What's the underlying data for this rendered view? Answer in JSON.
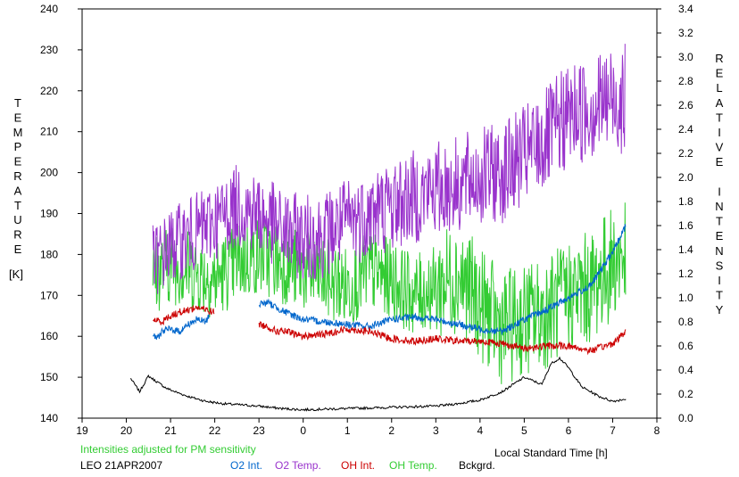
{
  "chart_data": {
    "type": "line",
    "note_text": "Intensities adjusted for PM sensitivity",
    "station_label": "LEO 21APR2007",
    "xlabel": "Local Standard Time [h]",
    "ylabel_left": "TEMPERATURE",
    "ylabel_left_unit": "[K]",
    "ylabel_right": "RELATIVE INTENSITY",
    "x_ticks": [
      "19",
      "20",
      "21",
      "22",
      "23",
      "0",
      "1",
      "2",
      "3",
      "4",
      "5",
      "6",
      "7",
      "8"
    ],
    "xlim": [
      19,
      32
    ],
    "ylim_left": [
      140,
      240
    ],
    "y_ticks_left": [
      "140",
      "150",
      "160",
      "170",
      "180",
      "190",
      "200",
      "210",
      "220",
      "230",
      "240"
    ],
    "ylim_right": [
      0,
      3.4
    ],
    "y_ticks_right": [
      "0.0",
      "0.2",
      "0.4",
      "0.6",
      "0.8",
      "1.0",
      "1.2",
      "1.4",
      "1.6",
      "1.8",
      "2.0",
      "2.2",
      "2.4",
      "2.6",
      "2.8",
      "3.0",
      "3.2",
      "3.4"
    ],
    "grid": false,
    "legend_position": "bottom",
    "series": [
      {
        "name": "O2 Int.",
        "axis": "right",
        "color": "#0066cc",
        "segments": [
          {
            "x": [
              20.6,
              20.7,
              20.8,
              21.0,
              21.2,
              21.4,
              21.6,
              21.8,
              21.9
            ],
            "y": [
              0.7,
              0.66,
              0.72,
              0.74,
              0.72,
              0.78,
              0.82,
              0.8,
              0.88
            ]
          },
          {
            "x": [
              23.0,
              23.2,
              23.4,
              23.6,
              23.8,
              24.0,
              24.5,
              25.0,
              25.5,
              26.0,
              26.5,
              27.0,
              27.5,
              28.0,
              28.5,
              29.0,
              29.5,
              30.0,
              30.5,
              31.0,
              31.3
            ],
            "y": [
              0.95,
              0.96,
              0.92,
              0.88,
              0.85,
              0.82,
              0.8,
              0.78,
              0.76,
              0.82,
              0.84,
              0.82,
              0.78,
              0.74,
              0.72,
              0.82,
              0.9,
              1.0,
              1.1,
              1.38,
              1.6
            ]
          }
        ]
      },
      {
        "name": "O2 Temp.",
        "axis": "left",
        "color": "#9933cc",
        "segments": [
          {
            "x": [
              20.6,
              21.0,
              21.5,
              22.0,
              22.5,
              23.0,
              23.5,
              24.0,
              24.5,
              25.0,
              25.5,
              26.0,
              26.5,
              27.0,
              27.5,
              28.0,
              28.5,
              29.0,
              29.5,
              30.0,
              30.5,
              31.0,
              31.3
            ],
            "y": [
              178,
              182,
              185,
              188,
              192,
              190,
              186,
              184,
              185,
              188,
              190,
              192,
              194,
              196,
              197,
              199,
              200,
              204,
              208,
              214,
              216,
              218,
              218
            ]
          }
        ]
      },
      {
        "name": "OH Int.",
        "axis": "right",
        "color": "#cc0000",
        "segments": [
          {
            "x": [
              20.6,
              20.8,
              21.0,
              21.2,
              21.4,
              21.6,
              21.8,
              22.0
            ],
            "y": [
              0.82,
              0.8,
              0.85,
              0.88,
              0.9,
              0.92,
              0.9,
              0.88
            ]
          },
          {
            "x": [
              23.0,
              23.2,
              23.4,
              23.6,
              23.8,
              24.0,
              24.5,
              25.0,
              25.5,
              26.0,
              26.5,
              27.0,
              27.5,
              28.0,
              28.5,
              29.0,
              29.5,
              30.0,
              30.5,
              31.0,
              31.3
            ],
            "y": [
              0.78,
              0.76,
              0.72,
              0.72,
              0.7,
              0.68,
              0.7,
              0.74,
              0.72,
              0.66,
              0.64,
              0.66,
              0.64,
              0.64,
              0.62,
              0.58,
              0.6,
              0.6,
              0.56,
              0.62,
              0.72
            ]
          }
        ]
      },
      {
        "name": "OH Temp.",
        "axis": "left",
        "color": "#33cc33",
        "segments": [
          {
            "x": [
              20.6,
              21.0,
              21.5,
              22.0,
              22.5,
              23.0,
              23.5,
              24.0,
              24.5,
              25.0,
              25.5,
              26.0,
              26.5,
              27.0,
              27.5,
              28.0,
              28.5,
              29.0,
              29.5,
              30.0,
              30.5,
              31.0,
              31.3
            ],
            "y": [
              175,
              178,
              176,
              174,
              178,
              180,
              178,
              176,
              174,
              172,
              176,
              174,
              170,
              172,
              175,
              168,
              162,
              164,
              166,
              170,
              172,
              178,
              180
            ]
          }
        ]
      },
      {
        "name": "Bckgrd.",
        "axis": "right",
        "color": "#000000",
        "segments": [
          {
            "x": [
              20.1,
              20.3,
              20.5,
              20.7,
              20.9,
              21.1,
              21.4,
              21.8,
              22.2,
              22.6,
              23.0,
              23.5,
              24.0,
              25.0,
              26.0,
              27.0,
              27.5,
              28.0,
              28.5,
              29.0,
              29.4,
              29.6,
              29.8,
              30.0,
              30.3,
              30.7,
              31.0,
              31.3
            ],
            "y": [
              0.33,
              0.22,
              0.35,
              0.3,
              0.25,
              0.22,
              0.18,
              0.14,
              0.12,
              0.11,
              0.1,
              0.08,
              0.07,
              0.08,
              0.09,
              0.1,
              0.12,
              0.15,
              0.22,
              0.34,
              0.28,
              0.45,
              0.5,
              0.42,
              0.26,
              0.18,
              0.14,
              0.16
            ]
          }
        ]
      }
    ]
  }
}
